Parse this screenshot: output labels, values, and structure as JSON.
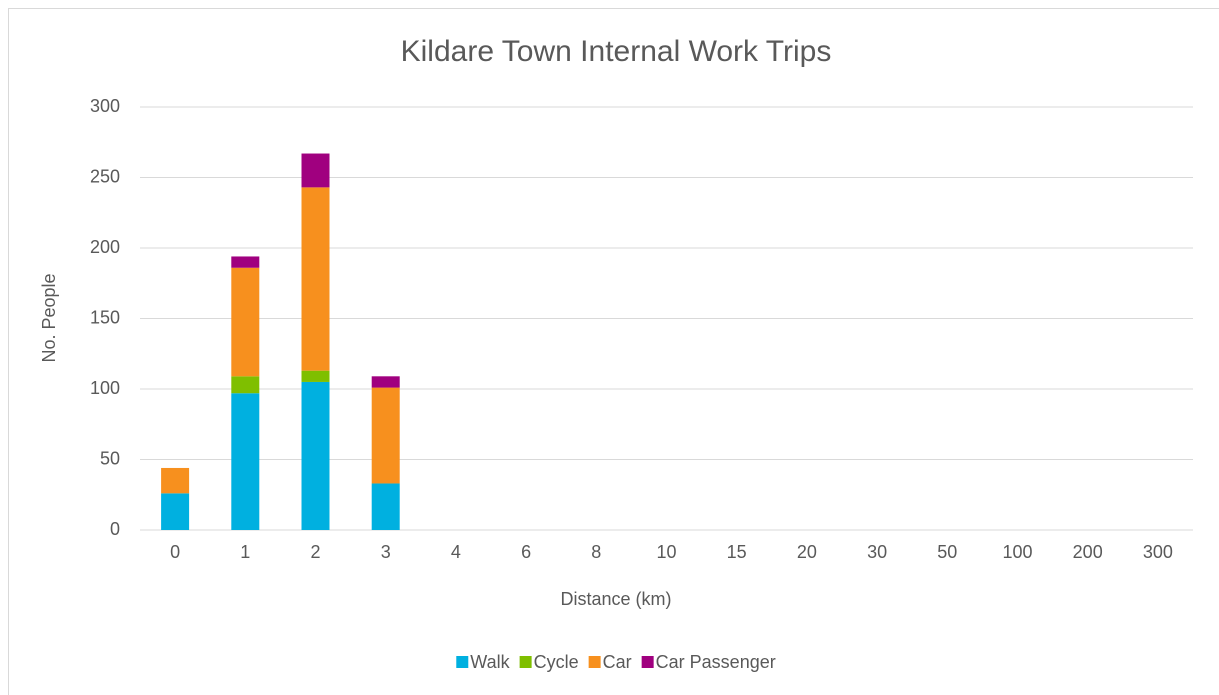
{
  "chart_data": {
    "type": "stacked-bar",
    "title": "Kildare Town Internal Work Trips",
    "x_label": "Distance (km)",
    "y_label": "No. People",
    "categories": [
      "0",
      "1",
      "2",
      "3",
      "4",
      "6",
      "8",
      "10",
      "15",
      "20",
      "30",
      "50",
      "100",
      "200",
      "300"
    ],
    "series": [
      {
        "name": "Walk",
        "color": "#00b0e0",
        "values": [
          26,
          97,
          105,
          33,
          0,
          0,
          0,
          0,
          0,
          0,
          0,
          0,
          0,
          0,
          0
        ]
      },
      {
        "name": "Cycle",
        "color": "#7fbf00",
        "values": [
          0,
          12,
          8,
          0,
          0,
          0,
          0,
          0,
          0,
          0,
          0,
          0,
          0,
          0,
          0
        ]
      },
      {
        "name": "Car",
        "color": "#f7901e",
        "values": [
          18,
          77,
          130,
          68,
          0,
          0,
          0,
          0,
          0,
          0,
          0,
          0,
          0,
          0,
          0
        ]
      },
      {
        "name": "Car Passenger",
        "color": "#a0007f",
        "values": [
          0,
          8,
          24,
          8,
          0,
          0,
          0,
          0,
          0,
          0,
          0,
          0,
          0,
          0,
          0
        ]
      }
    ],
    "ylim": [
      0,
      300
    ],
    "yticks": [
      0,
      50,
      100,
      150,
      200,
      250,
      300
    ],
    "grid": true,
    "legend": "bottom"
  }
}
